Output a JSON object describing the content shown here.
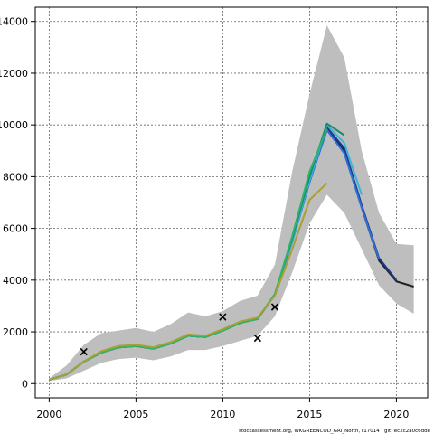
{
  "chart_data": {
    "type": "line",
    "xlabel": "",
    "ylabel": "",
    "xlim": [
      1999.2,
      2021.8
    ],
    "ylim": [
      -550,
      14550
    ],
    "xticks": [
      2000,
      2005,
      2010,
      2015,
      2020
    ],
    "yticks": [
      0,
      2000,
      4000,
      6000,
      8000,
      10000,
      12000,
      14000
    ],
    "grid": true,
    "footer": "stockassessment.org, WKGREENCOD_GRI_North, r17014 , git: ec2c2a0c6dde",
    "band": {
      "x": [
        2000,
        2001,
        2002,
        2003,
        2004,
        2005,
        2006,
        2007,
        2008,
        2009,
        2010,
        2011,
        2012,
        2013,
        2014,
        2015,
        2016,
        2017,
        2018,
        2019,
        2020,
        2021
      ],
      "upper": [
        200,
        700,
        1500,
        1950,
        2050,
        2150,
        2000,
        2300,
        2750,
        2600,
        2800,
        3200,
        3400,
        4600,
        8200,
        11200,
        13850,
        12600,
        9000,
        6600,
        5400,
        5350
      ],
      "lower": [
        100,
        200,
        500,
        800,
        950,
        1000,
        900,
        1050,
        1300,
        1300,
        1450,
        1650,
        1850,
        2600,
        4300,
        6200,
        7300,
        6600,
        5200,
        3800,
        3100,
        2700
      ]
    },
    "series": [
      {
        "color": "#222222",
        "x": [
          2000,
          2001,
          2002,
          2003,
          2004,
          2005,
          2006,
          2007,
          2008,
          2009,
          2010,
          2011,
          2012,
          2013,
          2014,
          2015,
          2016,
          2017,
          2018,
          2019,
          2020,
          2021
        ],
        "values": [
          150,
          350,
          850,
          1200,
          1400,
          1450,
          1350,
          1550,
          1850,
          1800,
          2050,
          2350,
          2500,
          3450,
          5500,
          7800,
          9900,
          9000,
          6800,
          4750,
          3950,
          3750
        ]
      },
      {
        "color": "#1e3a8a",
        "x": [
          2000,
          2001,
          2002,
          2003,
          2004,
          2005,
          2006,
          2007,
          2008,
          2009,
          2010,
          2011,
          2012,
          2013,
          2014,
          2015,
          2016,
          2017,
          2018,
          2019,
          2020
        ],
        "values": [
          150,
          350,
          850,
          1200,
          1400,
          1450,
          1350,
          1550,
          1850,
          1800,
          2050,
          2350,
          2500,
          3450,
          5500,
          7800,
          9900,
          9100,
          6900,
          4850,
          4000
        ]
      },
      {
        "color": "#2f6fd6",
        "x": [
          2000,
          2001,
          2002,
          2003,
          2004,
          2005,
          2006,
          2007,
          2008,
          2009,
          2010,
          2011,
          2012,
          2013,
          2014,
          2015,
          2016,
          2017,
          2018,
          2019
        ],
        "values": [
          150,
          350,
          850,
          1200,
          1400,
          1450,
          1350,
          1550,
          1850,
          1800,
          2050,
          2350,
          2500,
          3450,
          5500,
          7800,
          9800,
          8900,
          6800,
          4800
        ]
      },
      {
        "color": "#3cb4d8",
        "x": [
          2000,
          2001,
          2002,
          2003,
          2004,
          2005,
          2006,
          2007,
          2008,
          2009,
          2010,
          2011,
          2012,
          2013,
          2014,
          2015,
          2016,
          2017,
          2018
        ],
        "values": [
          150,
          350,
          850,
          1200,
          1400,
          1450,
          1350,
          1550,
          1850,
          1800,
          2050,
          2350,
          2500,
          3450,
          5500,
          7850,
          10000,
          9300,
          7300
        ]
      },
      {
        "color": "#1a8c6e",
        "x": [
          2000,
          2001,
          2002,
          2003,
          2004,
          2005,
          2006,
          2007,
          2008,
          2009,
          2010,
          2011,
          2012,
          2013,
          2014,
          2015,
          2016,
          2017
        ],
        "values": [
          150,
          350,
          850,
          1200,
          1400,
          1450,
          1350,
          1550,
          1850,
          1800,
          2050,
          2350,
          2500,
          3450,
          5600,
          8000,
          10050,
          9600
        ]
      },
      {
        "color": "#2db36b",
        "x": [
          2000,
          2001,
          2002,
          2003,
          2004,
          2005,
          2006,
          2007,
          2008,
          2009,
          2010,
          2011,
          2012,
          2013,
          2014,
          2015,
          2016
        ],
        "values": [
          150,
          350,
          850,
          1200,
          1400,
          1450,
          1350,
          1550,
          1850,
          1800,
          2050,
          2350,
          2500,
          3450,
          5700,
          8200,
          9850
        ]
      },
      {
        "color": "#a8a032",
        "x": [
          2000,
          2001,
          2002,
          2003,
          2004,
          2005,
          2006,
          2007,
          2008,
          2009,
          2010,
          2011,
          2012,
          2013,
          2014,
          2015,
          2016
        ],
        "values": [
          150,
          350,
          850,
          1250,
          1450,
          1500,
          1400,
          1600,
          1900,
          1850,
          2100,
          2400,
          2550,
          3400,
          5200,
          7100,
          7750
        ]
      }
    ],
    "markers": {
      "symbol": "×",
      "x": [
        2002,
        2010,
        2012,
        2013
      ],
      "values": [
        1250,
        2600,
        1780,
        2980
      ]
    }
  }
}
